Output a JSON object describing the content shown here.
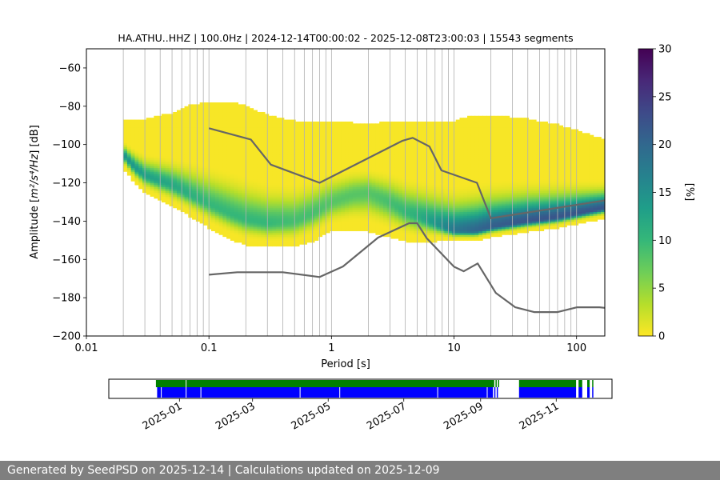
{
  "chart_data": {
    "type": "heatmap",
    "title": "HA.ATHU..HHZ | 100.0Hz | 2024-12-14T00:00:02 - 2025-12-08T23:00:03 | 15543 segments",
    "xlabel": "Period [s]",
    "ylabel_prefix": "Amplitude [",
    "ylabel_unit": "m²/s⁴/Hz",
    "ylabel_suffix": "] [dB]",
    "x_scale": "log",
    "xlim": [
      0.01,
      170
    ],
    "ylim": [
      -200,
      -50
    ],
    "x_ticks": [
      {
        "value": 0.01,
        "label": "0.01"
      },
      {
        "value": 0.1,
        "label": "0.1"
      },
      {
        "value": 1,
        "label": "1"
      },
      {
        "value": 10,
        "label": "10"
      },
      {
        "value": 100,
        "label": "100"
      }
    ],
    "y_ticks": [
      {
        "value": -60,
        "label": "−60"
      },
      {
        "value": -80,
        "label": "−80"
      },
      {
        "value": -100,
        "label": "−100"
      },
      {
        "value": -120,
        "label": "−120"
      },
      {
        "value": -140,
        "label": "−140"
      },
      {
        "value": -160,
        "label": "−160"
      },
      {
        "value": -180,
        "label": "−180"
      },
      {
        "value": -200,
        "label": "−200"
      }
    ],
    "grid": true,
    "x_gridlines": [
      0.02,
      0.03,
      0.04,
      0.05,
      0.06,
      0.07,
      0.08,
      0.09,
      0.1,
      0.2,
      0.3,
      0.4,
      0.5,
      0.6,
      0.7,
      0.8,
      0.9,
      1,
      2,
      3,
      4,
      5,
      6,
      7,
      8,
      9,
      10,
      20,
      30,
      40,
      50,
      60,
      70,
      80,
      90,
      100
    ],
    "period_range": [
      0.02,
      170
    ],
    "colorbar": {
      "label": "[%]",
      "range": [
        0,
        30
      ],
      "ticks": [
        {
          "value": 0,
          "label": "0"
        },
        {
          "value": 5,
          "label": "5"
        },
        {
          "value": 10,
          "label": "10"
        },
        {
          "value": 15,
          "label": "15"
        },
        {
          "value": 20,
          "label": "20"
        },
        {
          "value": 25,
          "label": "25"
        },
        {
          "value": 30,
          "label": "30"
        }
      ],
      "colormap": "viridis_r"
    },
    "density_profile": [
      {
        "period": 0.02,
        "mode": -105,
        "upper": -87,
        "lower": -112,
        "peak": 15
      },
      {
        "period": 0.025,
        "mode": -112,
        "upper": -87,
        "lower": -120,
        "peak": 14
      },
      {
        "period": 0.03,
        "mode": -116,
        "upper": -87,
        "lower": -125,
        "peak": 13
      },
      {
        "period": 0.05,
        "mode": -121,
        "upper": -84,
        "lower": -132,
        "peak": 12
      },
      {
        "period": 0.07,
        "mode": -126,
        "upper": -80,
        "lower": -137,
        "peak": 11
      },
      {
        "period": 0.1,
        "mode": -131,
        "upper": -78,
        "lower": -143,
        "peak": 10
      },
      {
        "period": 0.15,
        "mode": -136,
        "upper": -78,
        "lower": -149,
        "peak": 10
      },
      {
        "period": 0.2,
        "mode": -139,
        "upper": -80,
        "lower": -152,
        "peak": 10
      },
      {
        "period": 0.3,
        "mode": -141,
        "upper": -85,
        "lower": -153,
        "peak": 10
      },
      {
        "period": 0.5,
        "mode": -140,
        "upper": -88,
        "lower": -153,
        "peak": 9
      },
      {
        "period": 0.7,
        "mode": -136,
        "upper": -88,
        "lower": -150,
        "peak": 9
      },
      {
        "period": 1,
        "mode": -130,
        "upper": -88,
        "lower": -145,
        "peak": 8
      },
      {
        "period": 1.5,
        "mode": -126,
        "upper": -89,
        "lower": -144,
        "peak": 8
      },
      {
        "period": 2,
        "mode": -125,
        "upper": -90,
        "lower": -145,
        "peak": 8
      },
      {
        "period": 3,
        "mode": -130,
        "upper": -88,
        "lower": -148,
        "peak": 9
      },
      {
        "period": 4,
        "mode": -135,
        "upper": -88,
        "lower": -150,
        "peak": 10
      },
      {
        "period": 5,
        "mode": -137,
        "upper": -88,
        "lower": -151,
        "peak": 11
      },
      {
        "period": 7,
        "mode": -141,
        "upper": -88,
        "lower": -150,
        "peak": 14
      },
      {
        "period": 10,
        "mode": -145,
        "upper": -88,
        "lower": -150,
        "peak": 18
      },
      {
        "period": 15,
        "mode": -145,
        "upper": -85,
        "lower": -150,
        "peak": 20
      },
      {
        "period": 20,
        "mode": -143,
        "upper": -85,
        "lower": -148,
        "peak": 21
      },
      {
        "period": 40,
        "mode": -140,
        "upper": -87,
        "lower": -145,
        "peak": 22
      },
      {
        "period": 70,
        "mode": -138,
        "upper": -90,
        "lower": -143,
        "peak": 22
      },
      {
        "period": 100,
        "mode": -136,
        "upper": -93,
        "lower": -141,
        "peak": 22
      },
      {
        "period": 170,
        "mode": -133,
        "upper": -98,
        "lower": -138,
        "peak": 22
      }
    ],
    "nhnm": {
      "period": [
        0.1,
        0.22,
        0.32,
        0.8,
        3.8,
        4.6,
        6.3,
        7.9,
        15.4,
        20,
        354.8
      ],
      "db": [
        -91.5,
        -97.4,
        -110.5,
        -120,
        -98,
        -96.5,
        -101,
        -113.5,
        -120,
        -138.5,
        -126
      ]
    },
    "nlnm": {
      "period": [
        0.1,
        0.17,
        0.4,
        0.8,
        1.24,
        2.4,
        4.3,
        5,
        6,
        10,
        12,
        15.6,
        21.9,
        31.6,
        45,
        70,
        101,
        154,
        170
      ],
      "db": [
        -168,
        -166.7,
        -166.7,
        -169.2,
        -163.7,
        -148.6,
        -141.1,
        -141.1,
        -149,
        -163.8,
        -166.2,
        -162.1,
        -177.5,
        -185,
        -187.5,
        -187.5,
        -185,
        -185,
        -185.3
      ]
    },
    "availability": {
      "date_range": [
        "2024-12-14",
        "2025-12-08"
      ],
      "data_color": "#0000ff",
      "segments_color": "#008000",
      "data_intervals": [
        [
          "2024-12-14",
          "2025-09-11"
        ],
        [
          "2025-09-12",
          "2025-09-13"
        ],
        [
          "2025-09-14",
          "2025-09-15"
        ],
        [
          "2025-10-02",
          "2025-11-17"
        ],
        [
          "2025-11-19",
          "2025-11-22"
        ],
        [
          "2025-11-26",
          "2025-11-28"
        ],
        [
          "2025-11-30",
          "2025-12-01"
        ]
      ],
      "data_gaps": [
        "2024-12-17",
        "2025-01-06",
        "2025-01-18",
        "2025-04-08",
        "2025-05-10",
        "2025-07-28",
        "2025-09-06"
      ],
      "segment_intervals": [
        [
          "2024-12-13",
          "2025-09-12"
        ],
        [
          "2025-09-13",
          "2025-09-14"
        ],
        [
          "2025-09-15",
          "2025-09-16"
        ],
        [
          "2025-10-02",
          "2025-11-17"
        ],
        [
          "2025-11-19",
          "2025-11-22"
        ],
        [
          "2025-11-26",
          "2025-11-28"
        ],
        [
          "2025-11-30",
          "2025-12-01"
        ]
      ],
      "segment_gaps": [
        "2025-01-06"
      ],
      "x_ticks": [
        {
          "date": "2025-01-01",
          "label": "2025-01"
        },
        {
          "date": "2025-03-01",
          "label": "2025-03"
        },
        {
          "date": "2025-05-01",
          "label": "2025-05"
        },
        {
          "date": "2025-07-01",
          "label": "2025-07"
        },
        {
          "date": "2025-09-01",
          "label": "2025-09"
        },
        {
          "date": "2025-11-01",
          "label": "2025-11"
        }
      ]
    }
  },
  "footer": {
    "text": "Generated by SeedPSD on 2025-12-14 | Calculations updated on 2025-12-09"
  }
}
